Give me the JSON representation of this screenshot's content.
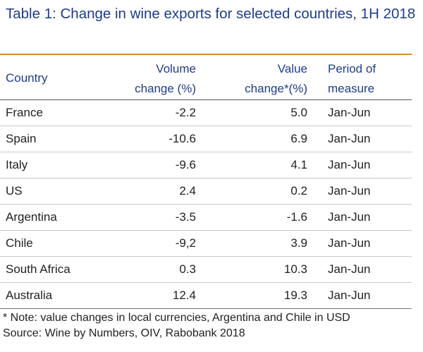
{
  "title": "Table 1: Change in wine exports for selected countries, 1H 2018",
  "headers": {
    "country": "Country",
    "volume_line1": "Volume",
    "volume_line2": "change (%)",
    "value_line1": "Value",
    "value_line2": "change*(%)",
    "period_line1": "Period of",
    "period_line2": "measure"
  },
  "rows": [
    {
      "country": "France",
      "volume": "-2.2",
      "value": "5.0",
      "period": "Jan-Jun"
    },
    {
      "country": "Spain",
      "volume": "-10.6",
      "value": "6.9",
      "period": "Jan-Jun"
    },
    {
      "country": "Italy",
      "volume": "-9.6",
      "value": "4.1",
      "period": "Jan-Jun"
    },
    {
      "country": "US",
      "volume": "2.4",
      "value": "0.2",
      "period": "Jan-Jun"
    },
    {
      "country": "Argentina",
      "volume": "-3.5",
      "value": "-1.6",
      "period": "Jan-Jun"
    },
    {
      "country": "Chile",
      "volume": "-9,2",
      "value": "3.9",
      "period": "Jan-Jun"
    },
    {
      "country": "South Africa",
      "volume": "0.3",
      "value": "10.3",
      "period": "Jan-Jun"
    },
    {
      "country": "Australia",
      "volume": "12.4",
      "value": "19.3",
      "period": "Jan-Jun"
    }
  ],
  "notes": {
    "note": "* Note: value changes in local currencies, Argentina and Chile in USD",
    "source": "Source: Wine by Numbers, OIV, Rabobank 2018"
  },
  "colors": {
    "title": "#1f3c8c",
    "rule": "#e58a1f"
  }
}
